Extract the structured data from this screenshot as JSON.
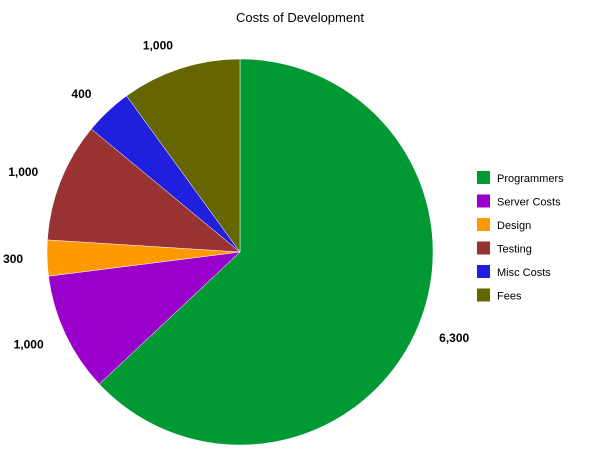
{
  "chart_data": {
    "type": "pie",
    "title": "Costs of Development",
    "categories": [
      "Programmers",
      "Server Costs",
      "Design",
      "Testing",
      "Misc Costs",
      "Fees"
    ],
    "values": [
      6300,
      1000,
      300,
      1000,
      400,
      1000
    ],
    "value_labels": [
      "6,300",
      "1,000",
      "300",
      "1,000",
      "400",
      "1,000"
    ],
    "colors": [
      "#009933",
      "#9900cc",
      "#ff9900",
      "#993333",
      "#1f1fdd",
      "#666600"
    ],
    "legend_position": "right",
    "start_angle": "12 o'clock",
    "direction": "clockwise"
  }
}
